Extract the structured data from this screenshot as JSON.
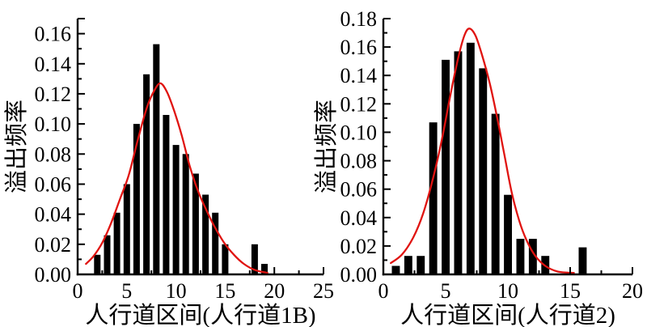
{
  "figure": {
    "background": "#ffffff",
    "bar_color": "#000000",
    "curve_color": "#e01310",
    "axis_color": "#000000",
    "text_color": "#000000"
  },
  "chart_data": [
    {
      "type": "bar",
      "panel": "left",
      "title": "",
      "xlabel": "人行道区间(人行道1B)",
      "ylabel": "溢出频率",
      "xlim": [
        0,
        25
      ],
      "ylim": [
        0,
        0.17
      ],
      "x_major_ticks": [
        0,
        5,
        10,
        15,
        20,
        25
      ],
      "x_minor_step": 2.5,
      "y_major_step": 0.02,
      "y_minor_step": 0.01,
      "y_tick_decimals": 2,
      "grid": "off",
      "legend": "none",
      "bar_width": 0.66,
      "bars": {
        "x": [
          2,
          3,
          4,
          5,
          6,
          7,
          8,
          9,
          10,
          11,
          12,
          13,
          14,
          15,
          18,
          19
        ],
        "values": [
          0.013,
          0.026,
          0.041,
          0.06,
          0.1,
          0.133,
          0.153,
          0.106,
          0.086,
          0.08,
          0.067,
          0.053,
          0.041,
          0.02,
          0.02,
          0.007
        ]
      },
      "fit_curve": {
        "label": "normal-distribution-fit",
        "peak": [
          8.4,
          0.127
        ],
        "points": [
          [
            0.85,
            0.007
          ],
          [
            1.6,
            0.012
          ],
          [
            2.5,
            0.021
          ],
          [
            3.4,
            0.034
          ],
          [
            4.3,
            0.05
          ],
          [
            5.2,
            0.066
          ],
          [
            6.1,
            0.089
          ],
          [
            7.0,
            0.11
          ],
          [
            7.7,
            0.121
          ],
          [
            8.4,
            0.127
          ],
          [
            9.1,
            0.121
          ],
          [
            9.8,
            0.109
          ],
          [
            10.6,
            0.092
          ],
          [
            11.4,
            0.072
          ],
          [
            12.2,
            0.056
          ],
          [
            13.0,
            0.044
          ],
          [
            13.9,
            0.032
          ],
          [
            14.9,
            0.021
          ],
          [
            15.9,
            0.013
          ],
          [
            16.9,
            0.007
          ],
          [
            18.0,
            0.003
          ],
          [
            19.3,
            0.001
          ]
        ]
      }
    },
    {
      "type": "bar",
      "panel": "right",
      "title": "",
      "xlabel": "人行道区间(人行道2)",
      "ylabel": "溢出频率",
      "xlim": [
        0,
        20
      ],
      "ylim": [
        0,
        0.18
      ],
      "x_major_ticks": [
        0,
        5,
        10,
        15,
        20
      ],
      "x_minor_step": 2.5,
      "y_major_step": 0.02,
      "y_minor_step": 0.01,
      "y_tick_decimals": 2,
      "grid": "off",
      "legend": "none",
      "bar_width": 0.64,
      "bars": {
        "x": [
          1,
          2,
          3,
          4,
          5,
          6,
          7,
          8,
          9,
          10,
          11,
          12,
          13,
          16
        ],
        "values": [
          0.006,
          0.013,
          0.013,
          0.107,
          0.151,
          0.157,
          0.163,
          0.145,
          0.113,
          0.056,
          0.025,
          0.025,
          0.013,
          0.019
        ]
      },
      "fit_curve": {
        "label": "normal-distribution-fit",
        "peak": [
          6.9,
          0.173
        ],
        "points": [
          [
            0.6,
            0.008
          ],
          [
            1.5,
            0.014
          ],
          [
            2.4,
            0.026
          ],
          [
            3.2,
            0.043
          ],
          [
            4.0,
            0.068
          ],
          [
            4.7,
            0.095
          ],
          [
            5.4,
            0.127
          ],
          [
            6.0,
            0.152
          ],
          [
            6.5,
            0.168
          ],
          [
            6.9,
            0.173
          ],
          [
            7.4,
            0.168
          ],
          [
            7.9,
            0.155
          ],
          [
            8.5,
            0.136
          ],
          [
            9.1,
            0.112
          ],
          [
            9.7,
            0.085
          ],
          [
            10.3,
            0.058
          ],
          [
            10.9,
            0.038
          ],
          [
            11.5,
            0.024
          ],
          [
            12.2,
            0.013
          ],
          [
            13.0,
            0.006
          ],
          [
            14.0,
            0.002
          ],
          [
            15.3,
            0.001
          ]
        ]
      }
    }
  ]
}
